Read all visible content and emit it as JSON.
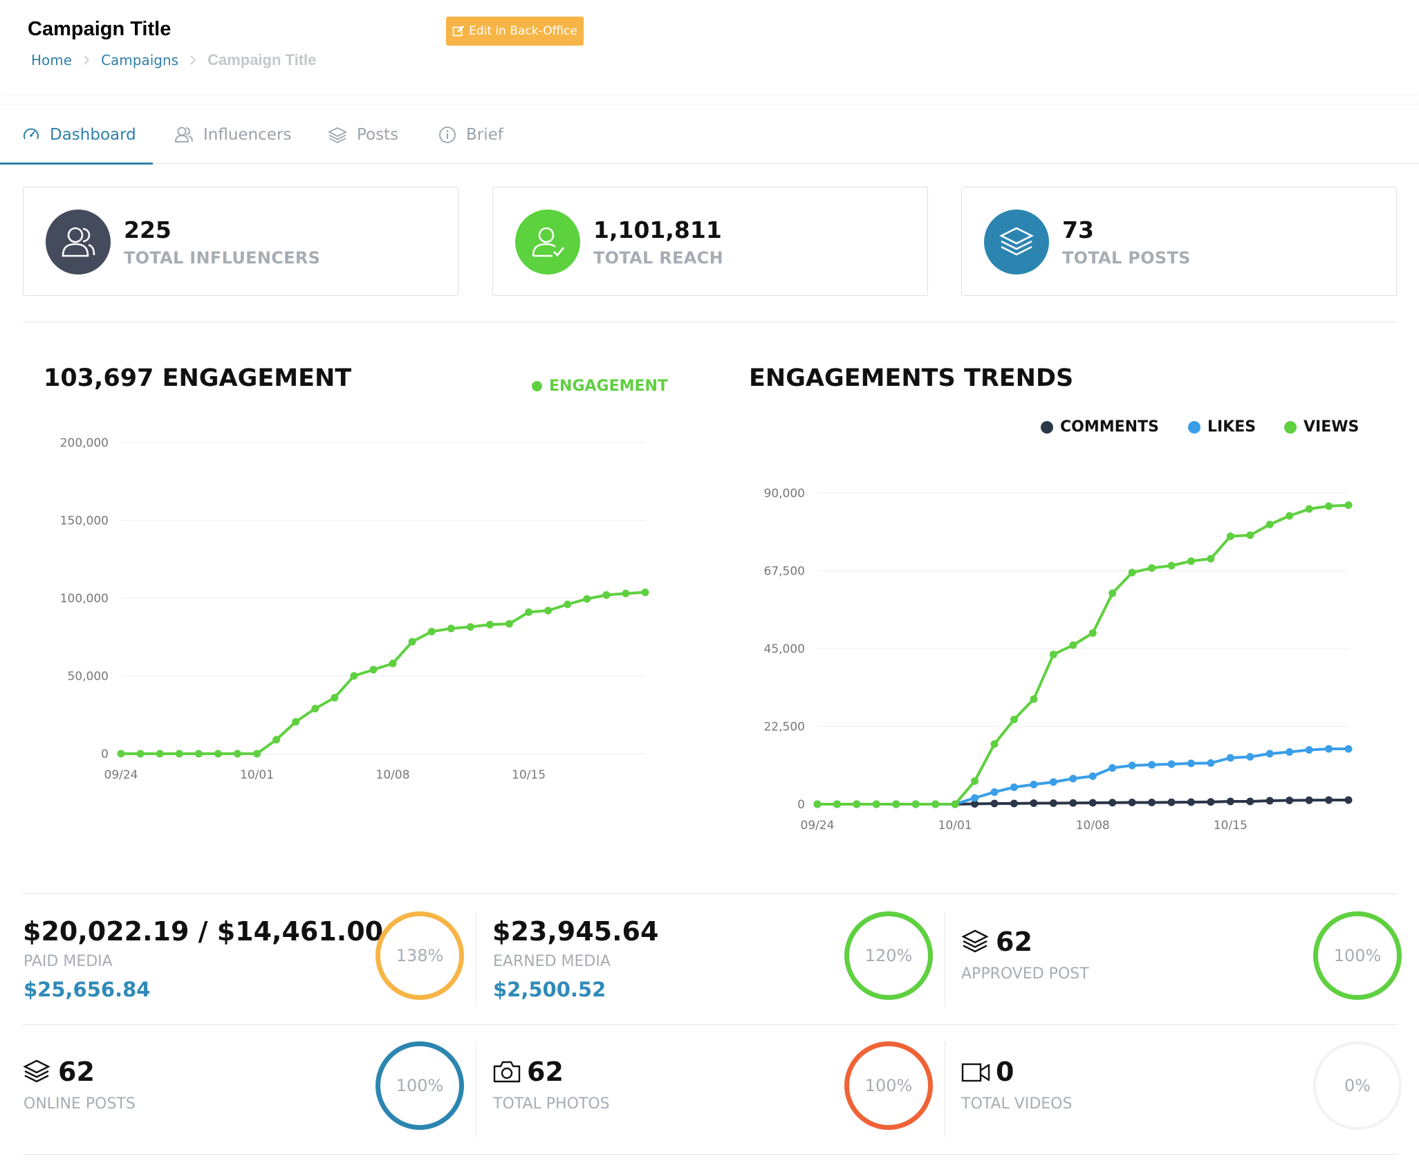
{
  "header": {
    "title": "Campaign Title",
    "edit_button": "Edit in Back-Office",
    "breadcrumb": [
      "Home",
      "Campaigns",
      "Campaign Title"
    ]
  },
  "tabs": [
    {
      "label": "Dashboard",
      "icon": "gauge-icon",
      "active": true
    },
    {
      "label": "Influencers",
      "icon": "users-icon",
      "active": false
    },
    {
      "label": "Posts",
      "icon": "layers-icon",
      "active": false
    },
    {
      "label": "Brief",
      "icon": "info-icon",
      "active": false
    }
  ],
  "stats": [
    {
      "value": "225",
      "label": "TOTAL INFLUENCERS",
      "icon": "users-icon",
      "color": "#434b5c"
    },
    {
      "value": "1,101,811",
      "label": "TOTAL REACH",
      "icon": "user-check-icon",
      "color": "#5bd23e"
    },
    {
      "value": "73",
      "label": "TOTAL POSTS",
      "icon": "layers-icon",
      "color": "#2c85b1"
    }
  ],
  "engagement_chart": {
    "title": "103,697 ENGAGEMENT",
    "legend": "ENGAGEMENT",
    "color": "#5fd040"
  },
  "trends_chart": {
    "title": "ENGAGEMENTS TRENDS",
    "legend": [
      {
        "label": "COMMENTS",
        "color": "#2b3649"
      },
      {
        "label": "LIKES",
        "color": "#3a9ee8"
      },
      {
        "label": "VIEWS",
        "color": "#5fd040"
      }
    ]
  },
  "chart_data": [
    {
      "type": "line",
      "title": "103,697 ENGAGEMENT",
      "x_ticks": [
        "09/24",
        "10/01",
        "10/08",
        "10/15"
      ],
      "y_ticks": [
        "0",
        "50,000",
        "100,000",
        "150,000",
        "200,000"
      ],
      "ylim": [
        0,
        200000
      ],
      "x": [
        0,
        1,
        2,
        3,
        4,
        5,
        6,
        7,
        8,
        9,
        10,
        11,
        12,
        13,
        14,
        15,
        16,
        17,
        18,
        19,
        20,
        21,
        22,
        23,
        24,
        25,
        26,
        27
      ],
      "series": [
        {
          "name": "ENGAGEMENT",
          "color": "#5fd040",
          "values": [
            0,
            0,
            0,
            0,
            0,
            0,
            0,
            0,
            9000,
            20500,
            29000,
            36000,
            50000,
            54000,
            58000,
            72000,
            78500,
            80500,
            81500,
            83000,
            83500,
            91000,
            92000,
            96000,
            99500,
            102000,
            103000,
            103697
          ]
        }
      ]
    },
    {
      "type": "line",
      "title": "ENGAGEMENTS TRENDS",
      "x_ticks": [
        "09/24",
        "10/01",
        "10/08",
        "10/15"
      ],
      "y_ticks": [
        "0",
        "22,500",
        "45,000",
        "67,500",
        "90,000"
      ],
      "ylim": [
        0,
        90000
      ],
      "x": [
        0,
        1,
        2,
        3,
        4,
        5,
        6,
        7,
        8,
        9,
        10,
        11,
        12,
        13,
        14,
        15,
        16,
        17,
        18,
        19,
        20,
        21,
        22,
        23,
        24,
        25,
        26,
        27
      ],
      "series": [
        {
          "name": "COMMENTS",
          "color": "#2b3649",
          "values": [
            0,
            0,
            0,
            0,
            0,
            0,
            0,
            0,
            100,
            200,
            200,
            300,
            300,
            350,
            400,
            450,
            500,
            500,
            550,
            600,
            650,
            800,
            800,
            1000,
            1100,
            1150,
            1200,
            1200
          ]
        },
        {
          "name": "LIKES",
          "color": "#3a9ee8",
          "values": [
            0,
            0,
            0,
            0,
            0,
            0,
            0,
            0,
            1800,
            3500,
            4900,
            5700,
            6400,
            7400,
            8100,
            10500,
            11200,
            11400,
            11600,
            11800,
            11900,
            13400,
            13700,
            14600,
            15100,
            15700,
            16000,
            16000
          ]
        },
        {
          "name": "VIEWS",
          "color": "#5fd040",
          "values": [
            0,
            0,
            0,
            0,
            0,
            0,
            0,
            0,
            6700,
            17400,
            24500,
            30400,
            43300,
            46000,
            49500,
            61000,
            67000,
            68300,
            69000,
            70300,
            71000,
            77500,
            77800,
            80900,
            83400,
            85400,
            86200,
            86500
          ]
        }
      ]
    }
  ],
  "metrics": [
    {
      "value": "$20,022.19 / $14,461.00",
      "label": "PAID MEDIA",
      "sub": "$25,656.84",
      "ring": "138%",
      "ring_color": "#f6b546",
      "icon": ""
    },
    {
      "value": "$23,945.64",
      "label": "EARNED MEDIA",
      "sub": "$2,500.52",
      "ring": "120%",
      "ring_color": "#5fd040",
      "icon": ""
    },
    {
      "value": "62",
      "label": "APPROVED POST",
      "sub": "",
      "ring": "100%",
      "ring_color": "#5fd040",
      "icon": "layers-icon"
    },
    {
      "value": "62",
      "label": "ONLINE POSTS",
      "sub": "",
      "ring": "100%",
      "ring_color": "#2c85b1",
      "icon": "layers-icon"
    },
    {
      "value": "62",
      "label": "TOTAL PHOTOS",
      "sub": "",
      "ring": "100%",
      "ring_color": "#ef6336",
      "icon": "camera-icon"
    },
    {
      "value": "0",
      "label": "TOTAL VIDEOS",
      "sub": "",
      "ring": "0%",
      "ring_color": "#f1f2f4",
      "icon": "video-icon"
    }
  ]
}
